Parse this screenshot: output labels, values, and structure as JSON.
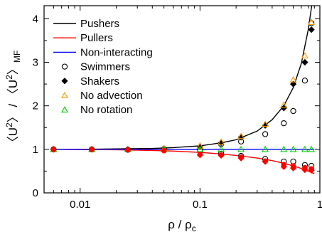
{
  "chart_data": {
    "type": "scatter",
    "xscale": "log",
    "xlim": [
      0.005,
      1.0
    ],
    "ylim": [
      0,
      4.3
    ],
    "xticks": [
      {
        "value": 0.01,
        "label": "0.01"
      },
      {
        "value": 0.1,
        "label": "0.1"
      },
      {
        "value": 1,
        "label": "1"
      }
    ],
    "yticks": [
      {
        "value": 0,
        "label": "0"
      },
      {
        "value": 1,
        "label": "1"
      },
      {
        "value": 2,
        "label": "2"
      },
      {
        "value": 3,
        "label": "3"
      },
      {
        "value": 4,
        "label": "4"
      }
    ],
    "xlabel": {
      "main": "ρ / ρ",
      "sub": "c"
    },
    "ylabel": {
      "p1": "〈U",
      "sup1": "2",
      "p2": "〉 / 〈U",
      "sup2": "2",
      "p3": "〉",
      "sub": "MF"
    },
    "legend_position": "top-left",
    "series": [
      {
        "name": "Pushers",
        "kind": "line",
        "color": "#000000",
        "x": [
          0.006,
          0.01,
          0.02,
          0.04,
          0.06,
          0.1,
          0.15,
          0.2,
          0.3,
          0.4,
          0.5,
          0.6,
          0.7,
          0.8,
          0.85,
          0.9
        ],
        "y": [
          1.0,
          1.0,
          1.01,
          1.02,
          1.04,
          1.08,
          1.15,
          1.22,
          1.42,
          1.68,
          2.0,
          2.42,
          2.97,
          3.75,
          4.25,
          4.9
        ]
      },
      {
        "name": "Pullers",
        "kind": "line",
        "color": "#ff0000",
        "x": [
          0.006,
          0.01,
          0.02,
          0.04,
          0.06,
          0.1,
          0.15,
          0.2,
          0.3,
          0.4,
          0.5,
          0.6,
          0.7,
          0.8,
          0.9
        ],
        "y": [
          1.0,
          0.995,
          0.99,
          0.975,
          0.96,
          0.93,
          0.895,
          0.86,
          0.8,
          0.74,
          0.68,
          0.62,
          0.56,
          0.5,
          0.44
        ]
      },
      {
        "name": "Non-interacting",
        "kind": "line",
        "color": "#0000ff",
        "x": [
          0.006,
          0.9
        ],
        "y": [
          1.0,
          1.0
        ]
      },
      {
        "name": "Swimmers",
        "kind": "marker",
        "marker": "open-circle",
        "color": "#000000",
        "points": [
          [
            0.006,
            1.0
          ],
          [
            0.0125,
            1.0
          ],
          [
            0.025,
            0.99
          ],
          [
            0.05,
            1.0
          ],
          [
            0.1,
            1.0
          ],
          [
            0.15,
            1.12
          ],
          [
            0.22,
            1.18
          ],
          [
            0.35,
            1.35
          ],
          [
            0.5,
            1.6
          ],
          [
            0.6,
            1.88
          ],
          [
            0.75,
            2.58
          ],
          [
            0.85,
            3.9
          ],
          [
            0.1,
            0.98
          ],
          [
            0.15,
            0.9
          ],
          [
            0.22,
            0.85
          ],
          [
            0.35,
            0.78
          ],
          [
            0.5,
            0.72
          ],
          [
            0.6,
            0.72
          ],
          [
            0.75,
            0.64
          ],
          [
            0.85,
            0.62
          ]
        ]
      },
      {
        "name": "Shakers",
        "kind": "marker",
        "marker": "filled-diamond",
        "color": "#000000",
        "points": [
          [
            0.006,
            1.0
          ],
          [
            0.0125,
            1.0
          ],
          [
            0.025,
            1.0
          ],
          [
            0.05,
            1.02
          ],
          [
            0.1,
            1.06
          ],
          [
            0.15,
            1.15
          ],
          [
            0.22,
            1.28
          ],
          [
            0.35,
            1.55
          ],
          [
            0.5,
            1.95
          ],
          [
            0.6,
            2.5
          ],
          [
            0.75,
            3.0
          ],
          [
            0.85,
            3.75
          ]
        ]
      },
      {
        "name": "No advection",
        "kind": "marker",
        "marker": "open-triangle",
        "color": "#ff9900",
        "points": [
          [
            0.006,
            1.0
          ],
          [
            0.0125,
            1.0
          ],
          [
            0.025,
            1.0
          ],
          [
            0.05,
            1.02
          ],
          [
            0.1,
            1.08
          ],
          [
            0.15,
            1.17
          ],
          [
            0.22,
            1.3
          ],
          [
            0.35,
            1.58
          ],
          [
            0.5,
            2.02
          ],
          [
            0.6,
            2.6
          ],
          [
            0.75,
            3.15
          ],
          [
            0.85,
            3.92
          ]
        ]
      },
      {
        "name": "No rotation",
        "kind": "marker",
        "marker": "open-triangle",
        "color": "#00cc00",
        "points": [
          [
            0.006,
            1.0
          ],
          [
            0.0125,
            1.0
          ],
          [
            0.025,
            1.0
          ],
          [
            0.05,
            1.0
          ],
          [
            0.1,
            1.0
          ],
          [
            0.15,
            1.0
          ],
          [
            0.22,
            1.0
          ],
          [
            0.35,
            1.0
          ],
          [
            0.5,
            1.0
          ],
          [
            0.6,
            1.0
          ],
          [
            0.75,
            1.0
          ],
          [
            0.85,
            1.0
          ]
        ]
      },
      {
        "name": "",
        "kind": "marker",
        "marker": "filled-circle",
        "color": "#ff0000",
        "points": [
          [
            0.006,
            1.0
          ],
          [
            0.0125,
            1.0
          ],
          [
            0.025,
            0.99
          ],
          [
            0.05,
            0.97
          ],
          [
            0.1,
            0.88
          ],
          [
            0.15,
            0.87
          ],
          [
            0.22,
            0.82
          ],
          [
            0.35,
            0.73
          ],
          [
            0.5,
            0.65
          ],
          [
            0.6,
            0.62
          ],
          [
            0.75,
            0.58
          ],
          [
            0.85,
            0.55
          ]
        ]
      },
      {
        "name": "",
        "kind": "marker",
        "marker": "filled-diamond",
        "color": "#ff0000",
        "points": [
          [
            0.1,
            0.87
          ],
          [
            0.15,
            0.86
          ],
          [
            0.22,
            0.8
          ],
          [
            0.35,
            0.72
          ],
          [
            0.5,
            0.6
          ],
          [
            0.6,
            0.57
          ],
          [
            0.75,
            0.53
          ],
          [
            0.85,
            0.52
          ]
        ]
      }
    ]
  }
}
